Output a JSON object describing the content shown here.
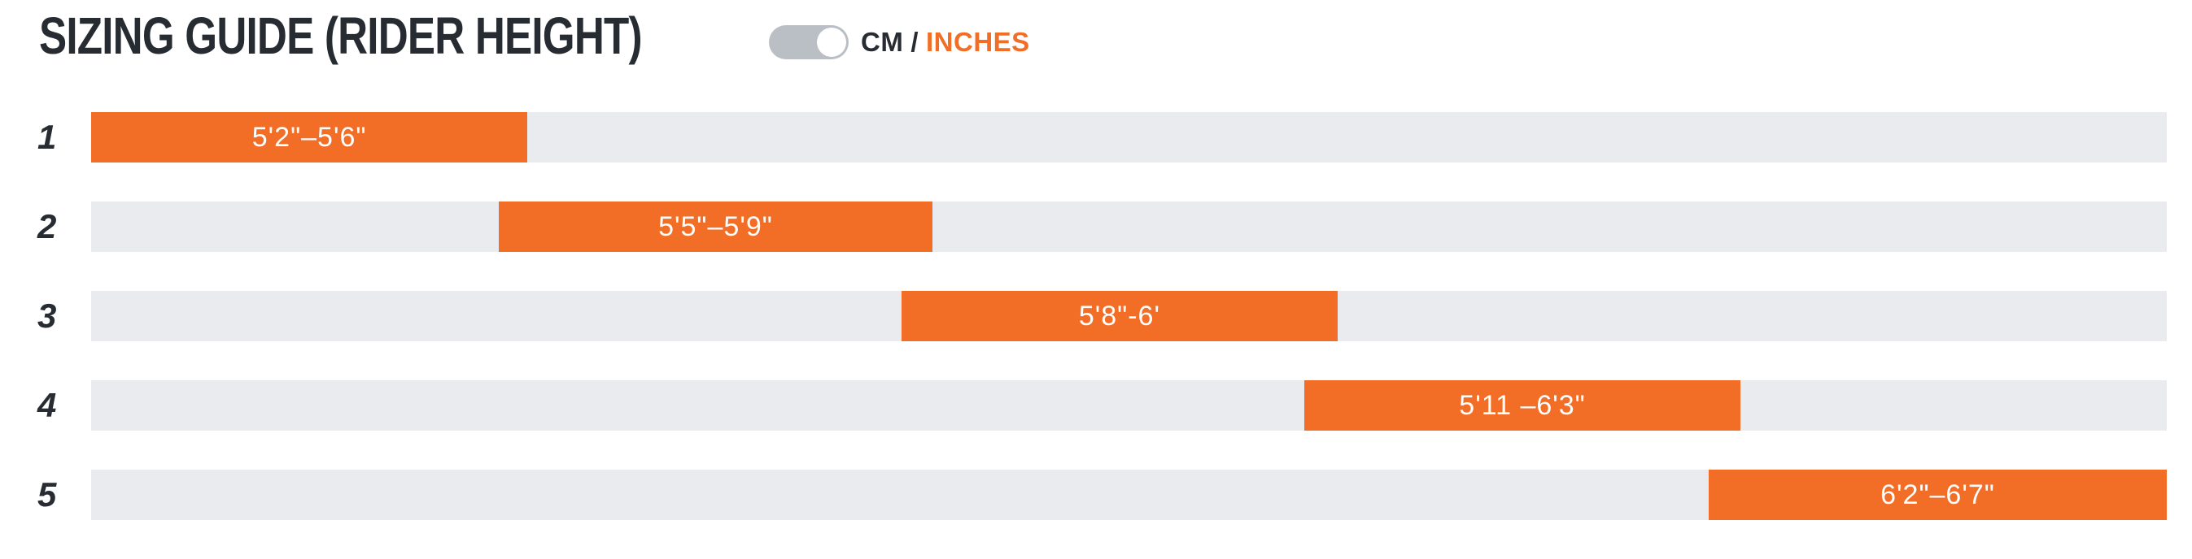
{
  "header": {
    "title": "SIZING GUIDE (RIDER HEIGHT)",
    "unit_toggle": {
      "cm_label": "CM",
      "separator": "/",
      "inches_label": "INCHES",
      "selected_unit": "inches"
    }
  },
  "colors": {
    "accent_orange": "#F26E26",
    "track_gray": "#E9EBEE",
    "text_dark": "#272C33",
    "toggle_gray": "#B9BFC5",
    "bar_text": "#FFFFFF",
    "background": "#FFFFFF"
  },
  "chart_data": {
    "type": "bar",
    "orientation": "horizontal",
    "title": "SIZING GUIDE (RIDER HEIGHT)",
    "unit": "inches",
    "grid": false,
    "legend": false,
    "categories": [
      "1",
      "2",
      "3",
      "4",
      "5"
    ],
    "series": [
      {
        "name": "Rider height range",
        "labels": [
          "5'2\"–5'6\"",
          "5'5\"–5'9\"",
          "5'8\"-6'",
          "5'11 –6'3\"",
          "6'2\"–6'7\""
        ],
        "ranges_inches": [
          [
            62,
            66
          ],
          [
            65,
            69
          ],
          [
            68,
            72
          ],
          [
            71,
            75
          ],
          [
            74,
            79
          ]
        ]
      }
    ],
    "bars": [
      {
        "size": "1",
        "label": "5'2\"–5'6\"",
        "start_pct": 0,
        "width_pct": 21.02
      },
      {
        "size": "2",
        "label": "5'5\"–5'9\"",
        "start_pct": 19.64,
        "width_pct": 20.89
      },
      {
        "size": "3",
        "label": "5'8\"-6'",
        "start_pct": 39.04,
        "width_pct": 21.01
      },
      {
        "size": "4",
        "label": "5'11 –6'3\"",
        "start_pct": 58.45,
        "width_pct": 21.01
      },
      {
        "size": "5",
        "label": "6'2\"–6'7\"",
        "start_pct": 77.93,
        "width_pct": 22.07
      }
    ]
  }
}
